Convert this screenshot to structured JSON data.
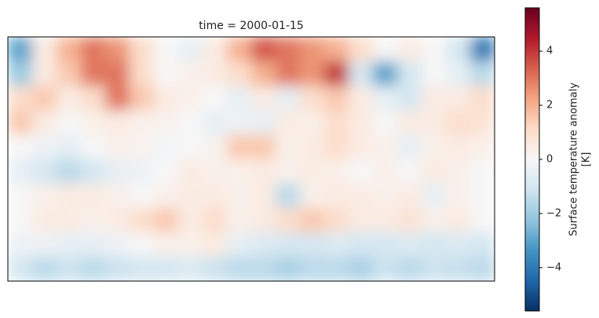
{
  "chart_data": {
    "type": "heatmap",
    "title": "time = 2000-01-15",
    "colorbar_label": [
      "Surface temperature anomaly",
      "[K]"
    ],
    "colormap": "RdBu_r",
    "clim": [
      -5.6,
      5.6
    ],
    "cticks": [
      {
        "value": -4,
        "label": "−4"
      },
      {
        "value": -2,
        "label": "−2"
      },
      0,
      2,
      4
    ],
    "z": [
      [
        -3,
        0.5,
        2,
        3,
        2.5,
        1,
        0,
        -0.5,
        0.5,
        2,
        3.5,
        3,
        2.5,
        2,
        1,
        0,
        0.5,
        0,
        -1,
        -4
      ],
      [
        -2,
        0.5,
        1.5,
        3,
        3,
        1,
        0,
        0.3,
        0.5,
        1,
        2,
        3,
        2.5,
        4,
        -1,
        -3,
        -1,
        0,
        -0.5,
        -1.5
      ],
      [
        1,
        1.5,
        0.5,
        1,
        3,
        1.5,
        0.5,
        0.3,
        0,
        -0.5,
        0.5,
        -0.5,
        1,
        1.5,
        0.5,
        -0.5,
        -1,
        0.5,
        0.5,
        1
      ],
      [
        1.5,
        0.5,
        0,
        0.3,
        0.5,
        0.3,
        0.2,
        0,
        -0.5,
        -0.3,
        -0.5,
        0.5,
        0.3,
        1,
        0.5,
        0,
        0.5,
        0.5,
        1,
        0.8
      ],
      [
        0,
        -0.3,
        -0.5,
        0,
        0.3,
        0.2,
        -0.2,
        0,
        0.2,
        1.5,
        1.5,
        0.3,
        0.5,
        1,
        0.5,
        0.3,
        -0.5,
        0.3,
        0.5,
        0.3
      ],
      [
        -0.5,
        -1,
        -1.5,
        -1,
        -0.5,
        -0.3,
        0,
        0.5,
        0.3,
        0.3,
        0.5,
        0.3,
        0.5,
        0.3,
        0,
        0.3,
        0,
        0.5,
        0.3,
        0
      ],
      [
        0,
        0.3,
        0.5,
        0.5,
        0.3,
        0,
        0.3,
        0.5,
        0.5,
        0.3,
        0.5,
        -1.5,
        0.3,
        0.5,
        0.5,
        0.3,
        0.5,
        -0.5,
        0.3,
        0
      ],
      [
        0,
        0.5,
        0.5,
        0.3,
        0.5,
        1,
        1.5,
        0.5,
        1,
        0.3,
        0.5,
        1,
        1.5,
        1,
        0.5,
        0.5,
        0.8,
        0.3,
        0.5,
        0
      ],
      [
        -0.3,
        -0.3,
        -0.5,
        -0.5,
        -0.3,
        0,
        0.3,
        0.3,
        0.5,
        -0.5,
        -0.8,
        -1,
        -1,
        -0.8,
        -1,
        -1,
        -0.8,
        -1,
        -0.8,
        -1
      ],
      [
        -1,
        -1.5,
        -1.2,
        -1.5,
        -1.2,
        -1,
        -1,
        -0.8,
        -1.2,
        -1.5,
        -1.5,
        -1.8,
        -1.5,
        -1.5,
        -1.8,
        -1.2,
        -1.5,
        -1.2,
        -1.3,
        -1.5
      ]
    ]
  }
}
